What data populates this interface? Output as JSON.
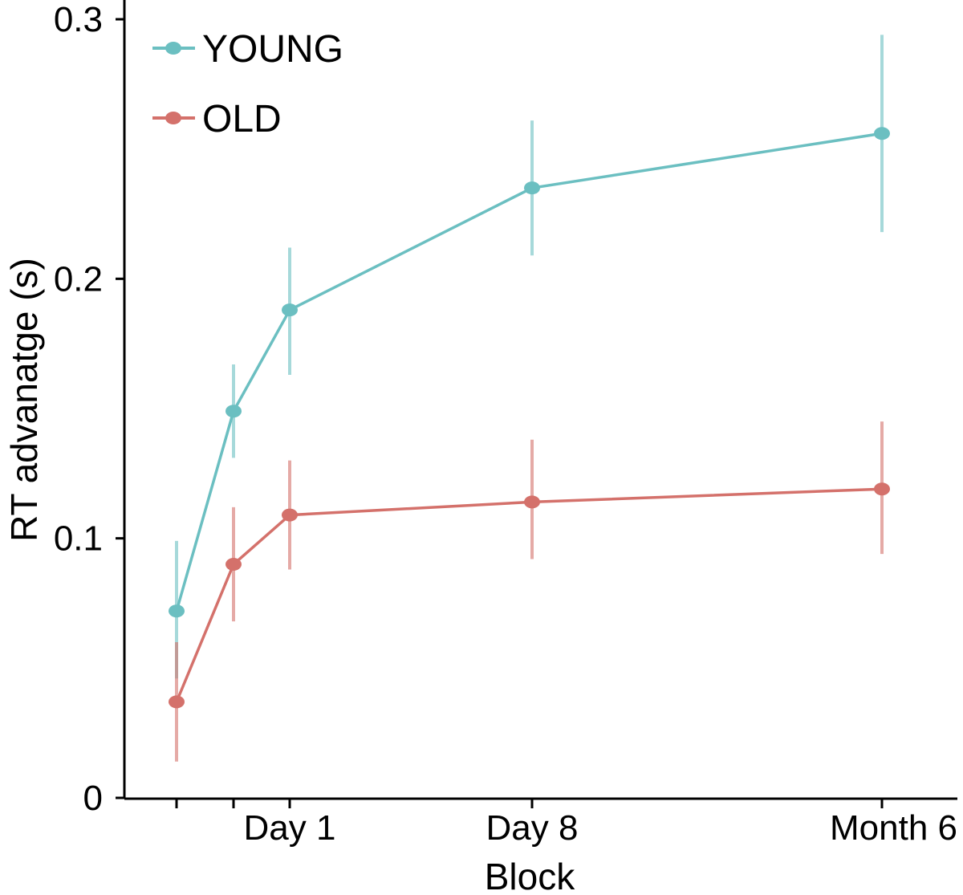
{
  "chart_data": {
    "type": "line",
    "title": "",
    "xlabel": "Block",
    "ylabel": "RT advanatge (s)",
    "ylim": [
      0,
      0.3
    ],
    "yticks": [
      0,
      0.1,
      0.2,
      0.3
    ],
    "ytick_labels": [
      "0",
      "0.1",
      "0.2",
      "0.3"
    ],
    "x": [
      1,
      2,
      3,
      4,
      5
    ],
    "xticks": [
      1,
      2,
      3,
      4,
      5
    ],
    "xtick_labels": [
      "",
      "",
      "Day 1",
      "Day 8",
      "Month 6"
    ],
    "x_domain": [
      0.5,
      5.4
    ],
    "x_positions_scale": "block index",
    "grid": false,
    "legend_position": "top-left",
    "series": [
      {
        "name": "YOUNG",
        "color": "#6bbfc1",
        "values": [
          0.072,
          0.149,
          0.188,
          0.235,
          0.256
        ],
        "err_low": [
          0.046,
          0.131,
          0.163,
          0.209,
          0.218
        ],
        "err_high": [
          0.099,
          0.167,
          0.212,
          0.261,
          0.294
        ]
      },
      {
        "name": "OLD",
        "color": "#d4716b",
        "values": [
          0.037,
          0.09,
          0.109,
          0.114,
          0.119
        ],
        "err_low": [
          0.014,
          0.068,
          0.088,
          0.092,
          0.094
        ],
        "err_high": [
          0.06,
          0.112,
          0.13,
          0.138,
          0.145
        ]
      }
    ]
  }
}
